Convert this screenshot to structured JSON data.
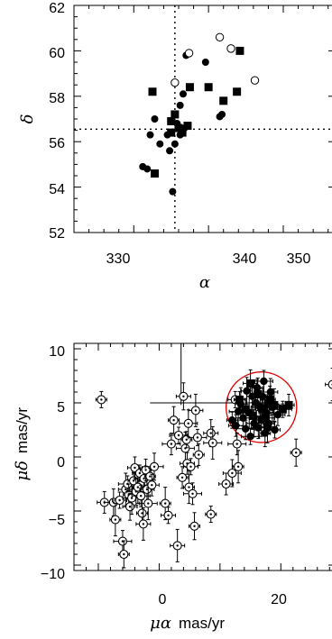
{
  "chart_data": [
    {
      "type": "scatter",
      "title": "",
      "xlabel": "α",
      "ylabel": "δ",
      "xlim": [
        322,
        357
      ],
      "ylim": [
        52,
        62
      ],
      "xticks": [
        "330",
        "340",
        "350"
      ],
      "yticks": [
        "52",
        "54",
        "56",
        "58",
        "60",
        "62"
      ],
      "reference_lines": {
        "x": 335.5,
        "y": 56.55,
        "style": "dotted"
      },
      "series": [
        {
          "marker": "filled-circle",
          "points": [
            [
              331.2,
              54.9
            ],
            [
              331.8,
              54.8
            ],
            [
              332.2,
              56.3
            ],
            [
              332.8,
              57.0
            ],
            [
              335.2,
              53.8
            ],
            [
              333.5,
              55.9
            ],
            [
              334.8,
              55.6
            ],
            [
              335.5,
              55.9
            ],
            [
              334.5,
              56.3
            ],
            [
              336.2,
              56.3
            ],
            [
              336.8,
              56.6
            ],
            [
              335.8,
              56.8
            ],
            [
              336.2,
              57.6
            ],
            [
              336.6,
              58.1
            ],
            [
              337.0,
              59.8
            ],
            [
              339.6,
              59.5
            ],
            [
              341.5,
              57.1
            ],
            [
              341.8,
              57.2
            ]
          ]
        },
        {
          "marker": "filled-square",
          "points": [
            [
              332.5,
              58.2
            ],
            [
              332.8,
              54.6
            ],
            [
              335.0,
              56.9
            ],
            [
              335.0,
              56.4
            ],
            [
              335.5,
              57.2
            ],
            [
              336.0,
              56.6
            ],
            [
              337.2,
              56.7
            ],
            [
              336.5,
              56.4
            ],
            [
              337.5,
              58.4
            ],
            [
              340.0,
              58.4
            ],
            [
              342.0,
              57.8
            ],
            [
              343.8,
              58.2
            ],
            [
              344.2,
              60.0
            ]
          ]
        },
        {
          "marker": "open-circle",
          "points": [
            [
              335.5,
              58.6
            ],
            [
              337.4,
              59.9
            ],
            [
              341.5,
              60.6
            ],
            [
              343.0,
              60.1
            ],
            [
              346.2,
              58.7
            ]
          ]
        }
      ]
    },
    {
      "type": "scatter",
      "title": "",
      "xlabel": "μα",
      "xlabel_unit": "mas/yr",
      "ylabel": "μδ",
      "ylabel_unit": "mas/yr",
      "xlim": [
        -14,
        29
      ],
      "ylim": [
        -10.5,
        10.5
      ],
      "xticks": [
        "0",
        "20"
      ],
      "yticks": [
        "−10",
        "−5",
        "0",
        "5",
        "10"
      ],
      "highlight_circle": {
        "cx": 16.8,
        "cy": 4.6,
        "r_x": 5.8,
        "color": "#e00000"
      },
      "series": [
        {
          "marker": "open-circle-errorbar",
          "points": [
            [
              -9.5,
              5.3
            ],
            [
              -9.0,
              -4.2
            ],
            [
              -7.5,
              -4.2
            ],
            [
              -7.2,
              -5.8
            ],
            [
              -6.5,
              -4.0
            ],
            [
              -6.0,
              -7.8
            ],
            [
              -5.8,
              -9.0
            ],
            [
              -5.5,
              -3.0
            ],
            [
              -5.2,
              -2.5
            ],
            [
              -5.0,
              -3.5
            ],
            [
              -4.8,
              -4.6
            ],
            [
              -4.5,
              -3.8
            ],
            [
              -4.2,
              -2.2
            ],
            [
              -4.0,
              -1.0
            ],
            [
              -3.8,
              -3.2
            ],
            [
              -3.5,
              -2.8
            ],
            [
              -3.2,
              -1.5
            ],
            [
              -3.0,
              -3.6
            ],
            [
              -2.8,
              -5.2
            ],
            [
              -2.6,
              -6.2
            ],
            [
              -2.5,
              -2.0
            ],
            [
              -2.2,
              -1.2
            ],
            [
              -2.0,
              -3.0
            ],
            [
              -1.8,
              -4.3
            ],
            [
              -1.5,
              -1.8
            ],
            [
              -1.2,
              -2.6
            ],
            [
              -0.8,
              -0.9
            ],
            [
              1.0,
              -4.3
            ],
            [
              1.5,
              -5.4
            ],
            [
              2.0,
              1.2
            ],
            [
              2.4,
              3.4
            ],
            [
              3.0,
              -8.2
            ],
            [
              3.2,
              2.0
            ],
            [
              3.8,
              -1.9
            ],
            [
              4.0,
              5.6
            ],
            [
              4.3,
              0.8
            ],
            [
              4.5,
              1.6
            ],
            [
              4.6,
              -0.6
            ],
            [
              4.8,
              3.1
            ],
            [
              4.9,
              -2.8
            ],
            [
              5.2,
              -0.9
            ],
            [
              5.5,
              -3.4
            ],
            [
              5.8,
              -6.4
            ],
            [
              6.0,
              4.3
            ],
            [
              6.3,
              1.8
            ],
            [
              6.5,
              0.2
            ],
            [
              8.5,
              2.2
            ],
            [
              8.8,
              1.3
            ],
            [
              8.5,
              -5.3
            ],
            [
              11.0,
              -2.5
            ],
            [
              12.0,
              -1.5
            ],
            [
              13.0,
              -0.9
            ],
            [
              12.5,
              5.3
            ],
            [
              12.8,
              1.2
            ],
            [
              22.5,
              0.4
            ],
            [
              28.5,
              6.7
            ]
          ]
        },
        {
          "marker": "filled-circle-errorbar",
          "points": [
            [
              12.0,
              3.4
            ],
            [
              12.6,
              2.9
            ],
            [
              13.0,
              4.2
            ],
            [
              13.4,
              4.9
            ],
            [
              13.8,
              3.6
            ],
            [
              14.2,
              2.6
            ],
            [
              14.4,
              6.1
            ],
            [
              14.8,
              4.1
            ],
            [
              15.0,
              1.9
            ],
            [
              15.3,
              5.6
            ],
            [
              15.6,
              3.1
            ],
            [
              15.9,
              5.0
            ],
            [
              16.1,
              6.4
            ],
            [
              16.3,
              2.7
            ],
            [
              16.6,
              4.6
            ],
            [
              16.8,
              3.4
            ],
            [
              17.0,
              5.6
            ],
            [
              17.2,
              7.0
            ],
            [
              17.4,
              2.2
            ],
            [
              17.6,
              4.1
            ],
            [
              17.8,
              5.0
            ],
            [
              18.0,
              3.1
            ],
            [
              18.3,
              6.0
            ],
            [
              18.6,
              4.6
            ],
            [
              19.0,
              2.5
            ],
            [
              19.5,
              3.9
            ]
          ]
        },
        {
          "marker": "filled-square-errorbar",
          "points": [
            [
              13.2,
              5.3
            ],
            [
              14.2,
              4.4
            ],
            [
              15.4,
              3.8
            ],
            [
              16.2,
              5.8
            ],
            [
              16.9,
              4.5
            ],
            [
              17.5,
              3.6
            ],
            [
              18.2,
              5.3
            ],
            [
              18.9,
              4.8
            ],
            [
              20.3,
              4.4
            ],
            [
              21.3,
              4.8
            ],
            [
              15.0,
              6.8
            ],
            [
              17.8,
              2.8
            ]
          ]
        }
      ]
    }
  ]
}
